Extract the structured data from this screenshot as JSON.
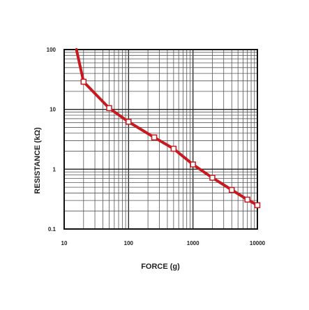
{
  "chart_data": {
    "type": "line",
    "xlabel": "FORCE (g)",
    "ylabel": "RESISTANCE (kΩ)",
    "x_scale": "log",
    "y_scale": "log",
    "xlim": [
      10,
      10000
    ],
    "ylim": [
      0.1,
      100
    ],
    "x_ticks": [
      "10",
      "100",
      "1000",
      "10000"
    ],
    "y_ticks": [
      "100",
      "10",
      "1",
      "0.1"
    ],
    "grid": true,
    "series": [
      {
        "line_color": "#c8191e",
        "marker": "hollow-square",
        "marker_color": "#ffffff",
        "x": [
          15.5,
          20,
          50,
          100,
          250,
          500,
          1000,
          2000,
          4000,
          7000,
          10000
        ],
        "y": [
          100,
          29,
          10.5,
          6.2,
          3.4,
          2.2,
          1.2,
          0.72,
          0.45,
          0.31,
          0.25
        ],
        "markers": [
          20,
          50,
          100,
          250,
          500,
          1000,
          2000,
          4000,
          7000,
          10000
        ]
      }
    ]
  }
}
